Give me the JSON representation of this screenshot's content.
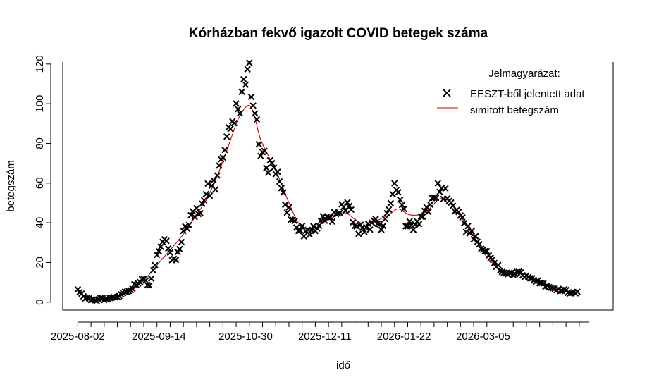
{
  "chart_data": {
    "type": "scatter",
    "title": "Kórházban fekvő igazolt COVID betegek száma",
    "xlabel": "idő",
    "ylabel": "betegszám",
    "x_type": "date",
    "xlim": [
      "2025-07-25",
      "2026-05-13"
    ],
    "ylim": [
      -4,
      121
    ],
    "x_ticks": [
      "2025-08-02",
      "2025-09-14",
      "2025-10-30",
      "2025-12-11",
      "2026-01-22",
      "2026-03-05"
    ],
    "y_ticks": [
      0,
      20,
      40,
      60,
      80,
      100,
      120
    ],
    "minor_tick_interval_days": 7,
    "minor_tick_start": "2025-08-02",
    "minor_tick_end": "2026-04-30",
    "legend": {
      "title": "Jelmagyarázat:",
      "position": "top-right",
      "entries": [
        {
          "label": "EESZT-ből jelentett adat",
          "symbol": "cross",
          "color": "#000000"
        },
        {
          "label": "simított betegszám",
          "symbol": "line",
          "color": "#cc0000"
        }
      ]
    },
    "series": [
      {
        "name": "EESZT-ből jelentett adat",
        "kind": "points",
        "color": "#000000",
        "anchors": [
          [
            "2025-08-02",
            6
          ],
          [
            "2025-08-06",
            2
          ],
          [
            "2025-08-12",
            1
          ],
          [
            "2025-08-18",
            2
          ],
          [
            "2025-08-23",
            3
          ],
          [
            "2025-08-28",
            5
          ],
          [
            "2025-09-02",
            9
          ],
          [
            "2025-09-06",
            12
          ],
          [
            "2025-09-09",
            8
          ],
          [
            "2025-09-12",
            20
          ],
          [
            "2025-09-15",
            29
          ],
          [
            "2025-09-18",
            32
          ],
          [
            "2025-09-21",
            20
          ],
          [
            "2025-09-24",
            24
          ],
          [
            "2025-09-28",
            38
          ],
          [
            "2025-10-02",
            45
          ],
          [
            "2025-10-06",
            47
          ],
          [
            "2025-10-10",
            56
          ],
          [
            "2025-10-14",
            60
          ],
          [
            "2025-10-18",
            73
          ],
          [
            "2025-10-21",
            85
          ],
          [
            "2025-10-24",
            95
          ],
          [
            "2025-10-27",
            101
          ],
          [
            "2025-10-30",
            107
          ],
          [
            "2025-11-01",
            113
          ],
          [
            "2025-11-03",
            103
          ],
          [
            "2025-11-05",
            90
          ],
          [
            "2025-11-07",
            78
          ],
          [
            "2025-11-10",
            70
          ],
          [
            "2025-11-13",
            68
          ],
          [
            "2025-11-16",
            62
          ],
          [
            "2025-11-19",
            52
          ],
          [
            "2025-11-22",
            45
          ],
          [
            "2025-11-25",
            40
          ],
          [
            "2025-11-28",
            37
          ],
          [
            "2025-12-01",
            34
          ],
          [
            "2025-12-05",
            36
          ],
          [
            "2025-12-09",
            40
          ],
          [
            "2025-12-13",
            42
          ],
          [
            "2025-12-17",
            44
          ],
          [
            "2025-12-21",
            49
          ],
          [
            "2025-12-24",
            47
          ],
          [
            "2025-12-27",
            38
          ],
          [
            "2025-12-31",
            36
          ],
          [
            "2026-01-04",
            38
          ],
          [
            "2026-01-08",
            41
          ],
          [
            "2026-01-11",
            38
          ],
          [
            "2026-01-14",
            47
          ],
          [
            "2026-01-17",
            56
          ],
          [
            "2026-01-20",
            53
          ],
          [
            "2026-01-23",
            41
          ],
          [
            "2026-01-26",
            38
          ],
          [
            "2026-01-29",
            40
          ],
          [
            "2026-02-01",
            45
          ],
          [
            "2026-02-05",
            50
          ],
          [
            "2026-02-09",
            57
          ],
          [
            "2026-02-13",
            55
          ],
          [
            "2026-02-17",
            50
          ],
          [
            "2026-02-21",
            43
          ],
          [
            "2026-02-25",
            36
          ],
          [
            "2026-02-28",
            33
          ],
          [
            "2026-03-03",
            30
          ],
          [
            "2026-03-07",
            24
          ],
          [
            "2026-03-11",
            20
          ],
          [
            "2026-03-15",
            16
          ],
          [
            "2026-03-19",
            14
          ],
          [
            "2026-03-23",
            15
          ],
          [
            "2026-03-27",
            13
          ],
          [
            "2026-03-31",
            12
          ],
          [
            "2026-04-04",
            10
          ],
          [
            "2026-04-08",
            8
          ],
          [
            "2026-04-12",
            7
          ],
          [
            "2026-04-16",
            6
          ],
          [
            "2026-04-20",
            5
          ],
          [
            "2026-04-24",
            5
          ]
        ]
      },
      {
        "name": "simított betegszám",
        "kind": "line",
        "color": "#cc0000",
        "anchors": [
          [
            "2025-08-02",
            5
          ],
          [
            "2025-08-07",
            3
          ],
          [
            "2025-08-17",
            2
          ],
          [
            "2025-08-27",
            4
          ],
          [
            "2025-09-06",
            11
          ],
          [
            "2025-09-16",
            22
          ],
          [
            "2025-09-26",
            33
          ],
          [
            "2025-10-04",
            44
          ],
          [
            "2025-10-10",
            53
          ],
          [
            "2025-10-16",
            66
          ],
          [
            "2025-10-21",
            79
          ],
          [
            "2025-10-26",
            92
          ],
          [
            "2025-10-31",
            99
          ],
          [
            "2025-11-03",
            96
          ],
          [
            "2025-11-07",
            82
          ],
          [
            "2025-11-12",
            72
          ],
          [
            "2025-11-17",
            62
          ],
          [
            "2025-11-22",
            50
          ],
          [
            "2025-11-27",
            40
          ],
          [
            "2025-12-02",
            37
          ],
          [
            "2025-12-08",
            39
          ],
          [
            "2025-12-16",
            43
          ],
          [
            "2025-12-22",
            45
          ],
          [
            "2025-12-30",
            40
          ],
          [
            "2026-01-07",
            41
          ],
          [
            "2026-01-14",
            44
          ],
          [
            "2026-01-19",
            47
          ],
          [
            "2026-01-25",
            44
          ],
          [
            "2026-02-02",
            45
          ],
          [
            "2026-02-10",
            52
          ],
          [
            "2026-02-16",
            50
          ],
          [
            "2026-02-22",
            42
          ],
          [
            "2026-02-28",
            33
          ],
          [
            "2026-03-06",
            24
          ],
          [
            "2026-03-12",
            18
          ],
          [
            "2026-03-18",
            15
          ],
          [
            "2026-03-26",
            13
          ],
          [
            "2026-04-04",
            10
          ],
          [
            "2026-04-12",
            7
          ],
          [
            "2026-04-20",
            5
          ],
          [
            "2026-04-25",
            5
          ]
        ]
      }
    ]
  }
}
